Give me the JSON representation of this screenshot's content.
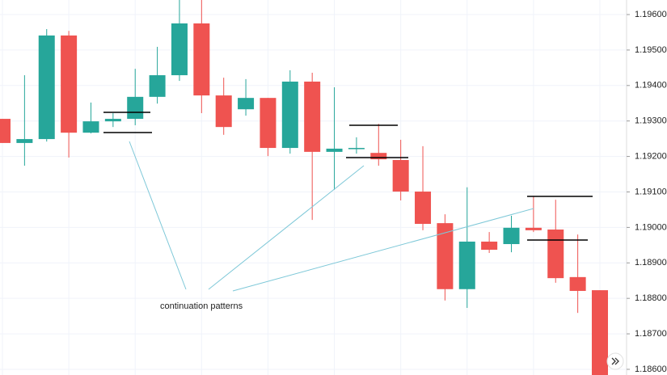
{
  "chart_data": {
    "type": "candlestick",
    "annotation": "continuation patterns",
    "categories": [
      null,
      null,
      null,
      null,
      null,
      null,
      null,
      null,
      null,
      null,
      null,
      null,
      null,
      null,
      null,
      null,
      null,
      null,
      null,
      null,
      null,
      null,
      null,
      null,
      null,
      null,
      null,
      null
    ],
    "open": [
      1.19306,
      1.19238,
      1.19249,
      1.19541,
      1.19267,
      1.19299,
      1.19306,
      1.19368,
      1.19429,
      1.19575,
      1.19372,
      1.19333,
      1.19365,
      1.19224,
      1.19411,
      1.19213,
      1.19224,
      1.1921,
      1.1919,
      1.19101,
      1.19012,
      1.18826,
      1.1896,
      1.18953,
      1.18999,
      1.18994,
      1.1886,
      1.18823
    ],
    "high": [
      1.19306,
      1.19429,
      1.19559,
      1.19554,
      1.19352,
      1.19322,
      1.19447,
      1.19509,
      1.19641,
      1.19641,
      1.19422,
      1.19418,
      1.19365,
      1.19443,
      1.19436,
      1.19395,
      1.19254,
      1.19292,
      1.19247,
      1.19229,
      1.19037,
      1.19113,
      1.18987,
      1.19033,
      1.19087,
      1.19078,
      1.1898,
      1.18823
    ],
    "low": [
      1.19238,
      1.19174,
      1.19242,
      1.19197,
      1.19265,
      1.19283,
      1.19288,
      1.19349,
      1.19413,
      1.19322,
      1.19261,
      1.19315,
      1.19201,
      1.19208,
      1.19021,
      1.19106,
      1.19208,
      1.19174,
      1.19076,
      1.18992,
      1.18794,
      1.18773,
      1.18928,
      1.1893,
      1.18987,
      1.18844,
      1.18759,
      1.18584
    ],
    "close": [
      1.19238,
      1.19249,
      1.19541,
      1.19267,
      1.19299,
      1.19306,
      1.19368,
      1.19429,
      1.19575,
      1.19372,
      1.19283,
      1.19365,
      1.19224,
      1.19411,
      1.19213,
      1.19222,
      1.19224,
      1.19192,
      1.19101,
      1.1901,
      1.18826,
      1.1896,
      1.18937,
      1.18999,
      1.18992,
      1.18857,
      1.18821,
      1.18584
    ],
    "up_color": "#26a69a",
    "down_color": "#ef5350",
    "ylim": [
      1.18584,
      1.19641
    ],
    "yticks": [
      {
        "value": 1.196,
        "label": "1.19600"
      },
      {
        "value": 1.195,
        "label": "1.19500"
      },
      {
        "value": 1.194,
        "label": "1.19400"
      },
      {
        "value": 1.193,
        "label": "1.19300"
      },
      {
        "value": 1.192,
        "label": "1.19200"
      },
      {
        "value": 1.191,
        "label": "1.19100"
      },
      {
        "value": 1.19,
        "label": "1.19000"
      },
      {
        "value": 1.189,
        "label": "1.18900"
      },
      {
        "value": 1.188,
        "label": "1.18800"
      },
      {
        "value": 1.187,
        "label": "1.18700"
      },
      {
        "value": 1.186,
        "label": "1.18600"
      }
    ],
    "grid": true
  }
}
